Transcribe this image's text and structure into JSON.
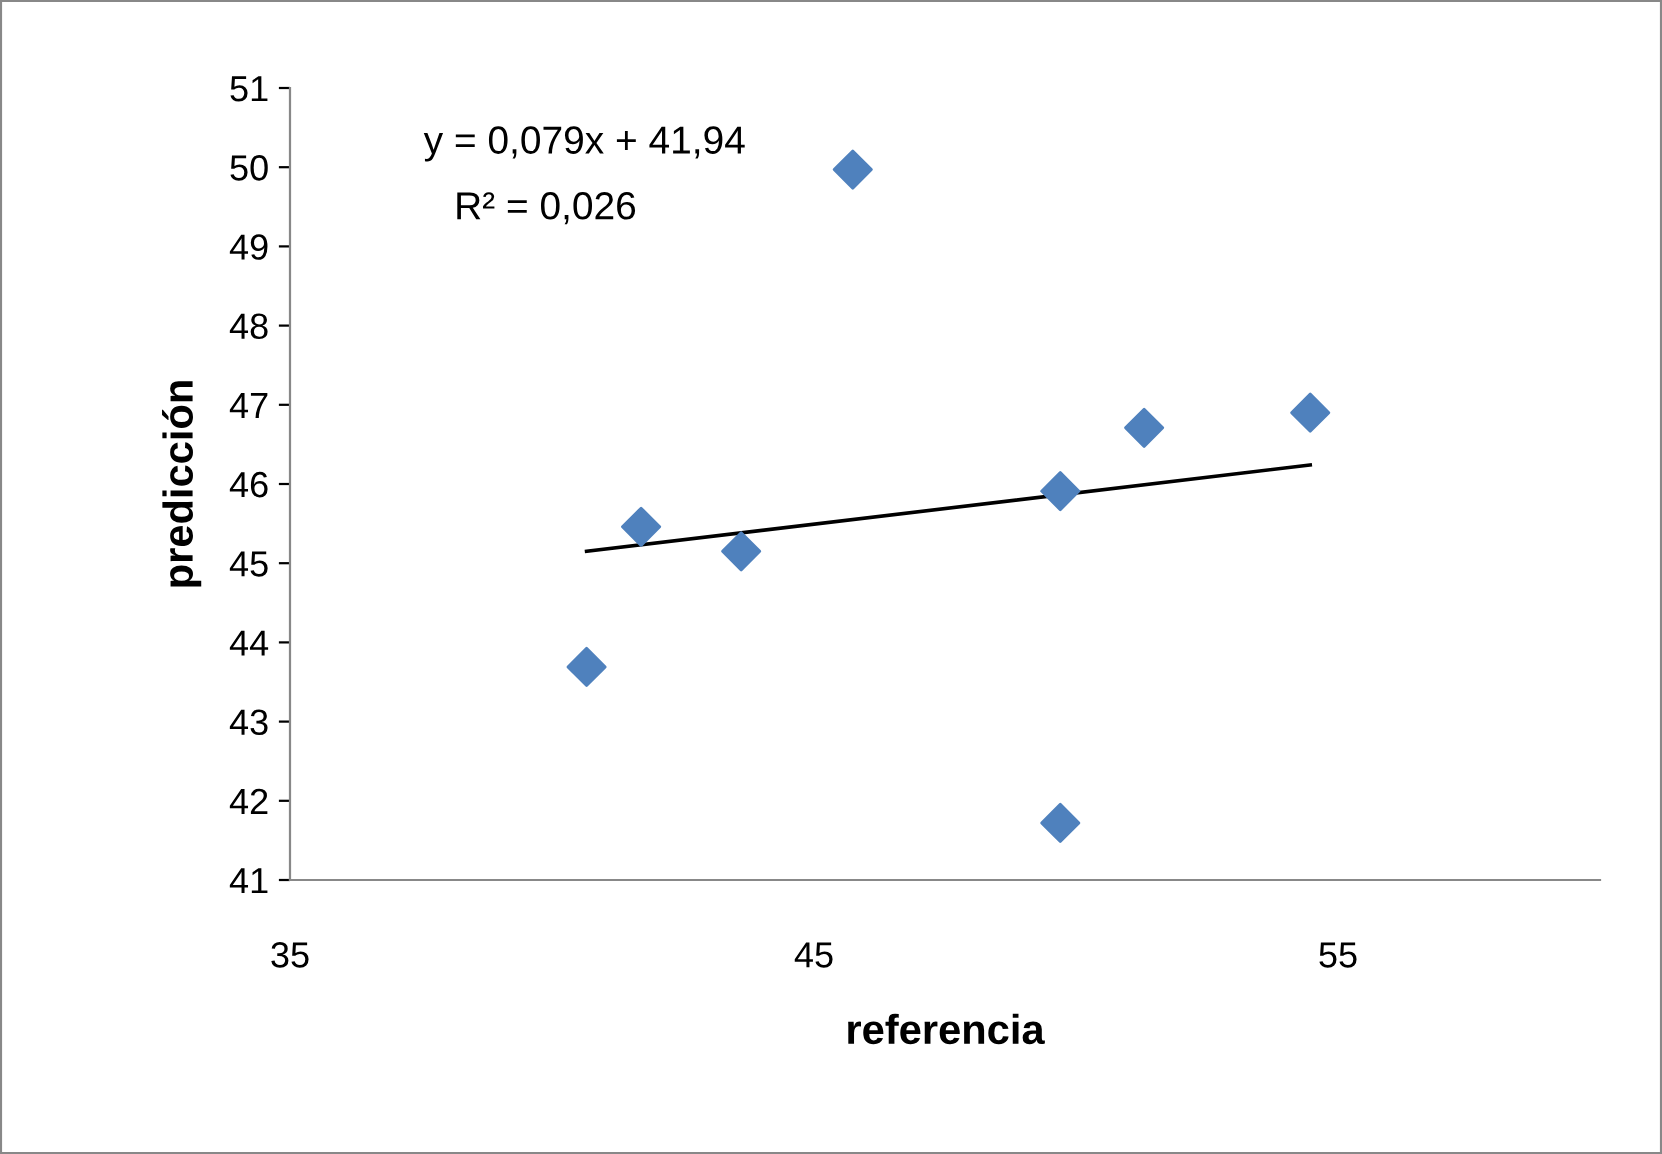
{
  "chart_data": {
    "type": "scatter",
    "xlabel": "referencia",
    "ylabel": "predicción",
    "series": [
      {
        "color": "#4f81bd",
        "marker": "diamond",
        "x": [
          40.66,
          41.7,
          43.61,
          45.74,
          49.7,
          49.7,
          51.3,
          54.47
        ],
        "values": [
          43.69,
          45.46,
          45.15,
          49.97,
          45.91,
          41.72,
          46.71,
          46.9
        ]
      },
      {
        "type": "line",
        "color": "#000000",
        "marker": "none",
        "x": [
          40.66,
          54.47
        ],
        "values": [
          45.15,
          46.24
        ]
      }
    ],
    "annotations": [
      "y = 0,079x + 41,94",
      "R² = 0,026"
    ],
    "xlim": [
      35,
      60
    ],
    "xticks": [
      35,
      45,
      55
    ],
    "ylim": [
      41,
      51
    ],
    "yticks": [
      41,
      42,
      43,
      44,
      45,
      46,
      47,
      48,
      49,
      50,
      51
    ],
    "grid": false,
    "legend": false
  }
}
